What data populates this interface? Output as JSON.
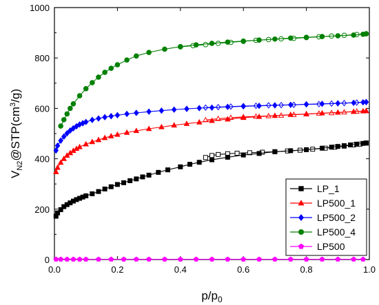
{
  "chart_data": {
    "type": "scatter",
    "xlabel": {
      "base": "p/p",
      "sub": "0"
    },
    "ylabel": {
      "pre": "V",
      "sub": "N2",
      "mid": "@STP(cm",
      "sup": "3",
      "post": "/g)"
    },
    "xlim": [
      0,
      1.0
    ],
    "ylim": [
      0,
      1000
    ],
    "xticks": [
      "0.0",
      "0.2",
      "0.4",
      "0.6",
      "0.8",
      "1.0"
    ],
    "yticks": [
      "0",
      "200",
      "400",
      "600",
      "800",
      "1000"
    ],
    "legend_position": "bottom-right",
    "series": [
      {
        "name": "LP_1",
        "color": "#000000",
        "marker": "square",
        "adsorption": {
          "x": [
            0.005,
            0.01,
            0.02,
            0.03,
            0.04,
            0.05,
            0.06,
            0.07,
            0.08,
            0.09,
            0.1,
            0.12,
            0.14,
            0.16,
            0.18,
            0.2,
            0.22,
            0.24,
            0.26,
            0.28,
            0.3,
            0.33,
            0.36,
            0.4,
            0.43,
            0.46,
            0.5,
            0.55,
            0.6,
            0.65,
            0.7,
            0.75,
            0.8,
            0.85,
            0.88,
            0.9,
            0.92,
            0.94,
            0.96,
            0.98,
            0.99
          ],
          "y": [
            172,
            185,
            198,
            210,
            218,
            225,
            232,
            238,
            243,
            248,
            253,
            261,
            270,
            280,
            289,
            298,
            305,
            313,
            320,
            328,
            335,
            346,
            356,
            368,
            378,
            386,
            396,
            406,
            415,
            421,
            428,
            432,
            436,
            442,
            446,
            449,
            452,
            455,
            458,
            461,
            463
          ]
        },
        "desorption": {
          "x": [
            0.99,
            0.97,
            0.95,
            0.92,
            0.89,
            0.86,
            0.82,
            0.78,
            0.74,
            0.7,
            0.66,
            0.62,
            0.58,
            0.55,
            0.52,
            0.5,
            0.48
          ],
          "y": [
            462,
            458,
            455,
            450,
            446,
            442,
            438,
            434,
            431,
            428,
            426,
            424,
            422,
            420,
            417,
            413,
            405
          ]
        }
      },
      {
        "name": "LP500_1",
        "color": "#ff0000",
        "marker": "triangle",
        "adsorption": {
          "x": [
            0.005,
            0.01,
            0.02,
            0.03,
            0.04,
            0.05,
            0.06,
            0.07,
            0.08,
            0.1,
            0.12,
            0.14,
            0.16,
            0.18,
            0.2,
            0.23,
            0.26,
            0.3,
            0.34,
            0.38,
            0.42,
            0.46,
            0.5,
            0.55,
            0.6,
            0.65,
            0.7,
            0.75,
            0.8,
            0.85,
            0.9,
            0.95,
            0.98,
            0.99
          ],
          "y": [
            348,
            365,
            385,
            400,
            413,
            423,
            432,
            440,
            447,
            458,
            467,
            475,
            483,
            490,
            496,
            504,
            511,
            519,
            526,
            533,
            539,
            545,
            551,
            557,
            563,
            567,
            571,
            575,
            578,
            581,
            584,
            587,
            589,
            590
          ]
        },
        "desorption": {
          "x": [
            0.99,
            0.96,
            0.92,
            0.88,
            0.84,
            0.8,
            0.76,
            0.72,
            0.68,
            0.64,
            0.6,
            0.56,
            0.52,
            0.48
          ],
          "y": [
            590,
            588,
            585,
            582,
            580,
            577,
            575,
            572,
            570,
            568,
            566,
            563,
            559,
            554
          ]
        }
      },
      {
        "name": "LP500_2",
        "color": "#0000ff",
        "marker": "diamond",
        "adsorption": {
          "x": [
            0.005,
            0.01,
            0.02,
            0.03,
            0.04,
            0.05,
            0.06,
            0.07,
            0.08,
            0.09,
            0.1,
            0.12,
            0.14,
            0.16,
            0.18,
            0.2,
            0.23,
            0.26,
            0.3,
            0.34,
            0.38,
            0.42,
            0.46,
            0.5,
            0.55,
            0.6,
            0.65,
            0.7,
            0.75,
            0.8,
            0.85,
            0.9,
            0.95,
            0.98,
            0.99
          ],
          "y": [
            433,
            452,
            472,
            488,
            501,
            512,
            521,
            529,
            536,
            541,
            546,
            554,
            560,
            565,
            569,
            573,
            578,
            582,
            587,
            591,
            595,
            598,
            601,
            603,
            606,
            608,
            610,
            612,
            614,
            616,
            618,
            620,
            622,
            624,
            625
          ]
        },
        "desorption": {
          "x": [
            0.99,
            0.96,
            0.92,
            0.88,
            0.84,
            0.8,
            0.76,
            0.72,
            0.68,
            0.64,
            0.6,
            0.56,
            0.52,
            0.48
          ],
          "y": [
            625,
            623,
            621,
            619,
            617,
            616,
            614,
            613,
            612,
            610,
            609,
            607,
            605,
            603
          ]
        }
      },
      {
        "name": "LP500_4",
        "color": "#008000",
        "marker": "circle",
        "adsorption": {
          "x": [
            0.02,
            0.03,
            0.04,
            0.05,
            0.06,
            0.08,
            0.1,
            0.12,
            0.14,
            0.16,
            0.18,
            0.2,
            0.23,
            0.26,
            0.3,
            0.35,
            0.4,
            0.45,
            0.5,
            0.55,
            0.6,
            0.65,
            0.7,
            0.75,
            0.8,
            0.85,
            0.9,
            0.95,
            0.98,
            0.99
          ],
          "y": [
            530,
            555,
            578,
            600,
            618,
            650,
            678,
            702,
            724,
            743,
            759,
            773,
            792,
            808,
            822,
            835,
            845,
            852,
            858,
            863,
            867,
            871,
            875,
            879,
            882,
            885,
            888,
            891,
            894,
            896
          ]
        },
        "desorption": {
          "x": [
            0.99,
            0.96,
            0.92,
            0.88,
            0.84,
            0.8,
            0.76,
            0.72,
            0.68,
            0.64,
            0.6,
            0.56,
            0.52,
            0.48,
            0.44,
            0.4
          ],
          "y": [
            896,
            893,
            890,
            887,
            884,
            881,
            878,
            876,
            873,
            870,
            866,
            862,
            858,
            853,
            849,
            844
          ]
        }
      },
      {
        "name": "LP500",
        "color": "#ff00ff",
        "marker": "pentagon",
        "adsorption": {
          "x": [
            0.005,
            0.02,
            0.04,
            0.06,
            0.08,
            0.1,
            0.14,
            0.18,
            0.22,
            0.26,
            0.3,
            0.35,
            0.4,
            0.45,
            0.5,
            0.55,
            0.6,
            0.65,
            0.7,
            0.75,
            0.8,
            0.85,
            0.9,
            0.95,
            0.98
          ],
          "y": [
            1,
            1,
            1,
            1,
            1,
            1,
            1,
            1,
            1,
            1,
            1,
            1,
            1,
            1,
            1,
            1,
            1,
            1,
            1,
            1,
            1,
            1,
            1,
            1,
            1
          ]
        },
        "desorption": {
          "x": [],
          "y": []
        }
      }
    ]
  }
}
